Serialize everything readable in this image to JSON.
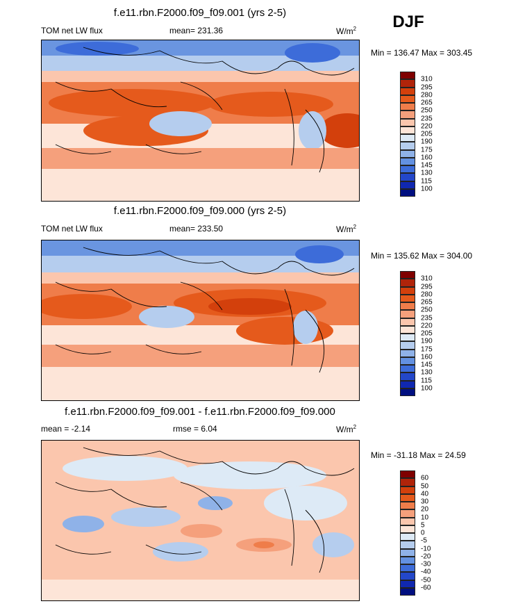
{
  "season": "DJF",
  "units": "W/m2",
  "panels": [
    {
      "title": "f.e11.rbn.F2000.f09_f09.001 (yrs 2-5)",
      "left_label": "TOM net LW flux",
      "center_label": "mean= 231.36",
      "right_label": "W/m",
      "right_sup": "2",
      "minmax": "Min = 136.47 Max = 303.45",
      "colorbar_ticks": [
        "310",
        "295",
        "280",
        "265",
        "250",
        "235",
        "220",
        "205",
        "190",
        "175",
        "160",
        "145",
        "130",
        "115",
        "100"
      ],
      "colors": [
        "#7f0000",
        "#b0240a",
        "#d3400c",
        "#e55a1c",
        "#ef7d4a",
        "#f5a07c",
        "#fbc6ad",
        "#fde5d8",
        "#ddeaf6",
        "#b5cdee",
        "#8fb2e8",
        "#6391e1",
        "#3d6cd9",
        "#2347c9",
        "#1028b0",
        "#000f80"
      ],
      "map": "map-abs"
    },
    {
      "title": "f.e11.rbn.F2000.f09_f09.000 (yrs 2-5)",
      "left_label": "TOM net LW flux",
      "center_label": "mean= 233.50",
      "right_label": "W/m",
      "right_sup": "2",
      "minmax": "Min = 135.62 Max = 304.00",
      "colorbar_ticks": [
        "310",
        "295",
        "280",
        "265",
        "250",
        "235",
        "220",
        "205",
        "190",
        "175",
        "160",
        "145",
        "130",
        "115",
        "100"
      ],
      "colors": [
        "#7f0000",
        "#b0240a",
        "#d3400c",
        "#e55a1c",
        "#ef7d4a",
        "#f5a07c",
        "#fbc6ad",
        "#fde5d8",
        "#ddeaf6",
        "#b5cdee",
        "#8fb2e8",
        "#6391e1",
        "#3d6cd9",
        "#2347c9",
        "#1028b0",
        "#000f80"
      ],
      "map": "map-abs"
    },
    {
      "title": "f.e11.rbn.F2000.f09_f09.001 - f.e11.rbn.F2000.f09_f09.000",
      "left_label": "mean =  -2.14",
      "center_label": "rmse =   6.04",
      "right_label": "W/m",
      "right_sup": "2",
      "minmax": "Min = -31.18 Max =  24.59",
      "colorbar_ticks": [
        "60",
        "50",
        "40",
        "30",
        "20",
        "10",
        "5",
        "0",
        "-5",
        "-10",
        "-20",
        "-30",
        "-40",
        "-50",
        "-60"
      ],
      "colors": [
        "#7f0000",
        "#b0240a",
        "#d3400c",
        "#e55a1c",
        "#ef7d4a",
        "#f5a07c",
        "#fbc6ad",
        "#fde5d8",
        "#ddeaf6",
        "#b5cdee",
        "#8fb2e8",
        "#6391e1",
        "#3d6cd9",
        "#2347c9",
        "#1028b0",
        "#000f80"
      ],
      "map": "map-diff"
    }
  ]
}
